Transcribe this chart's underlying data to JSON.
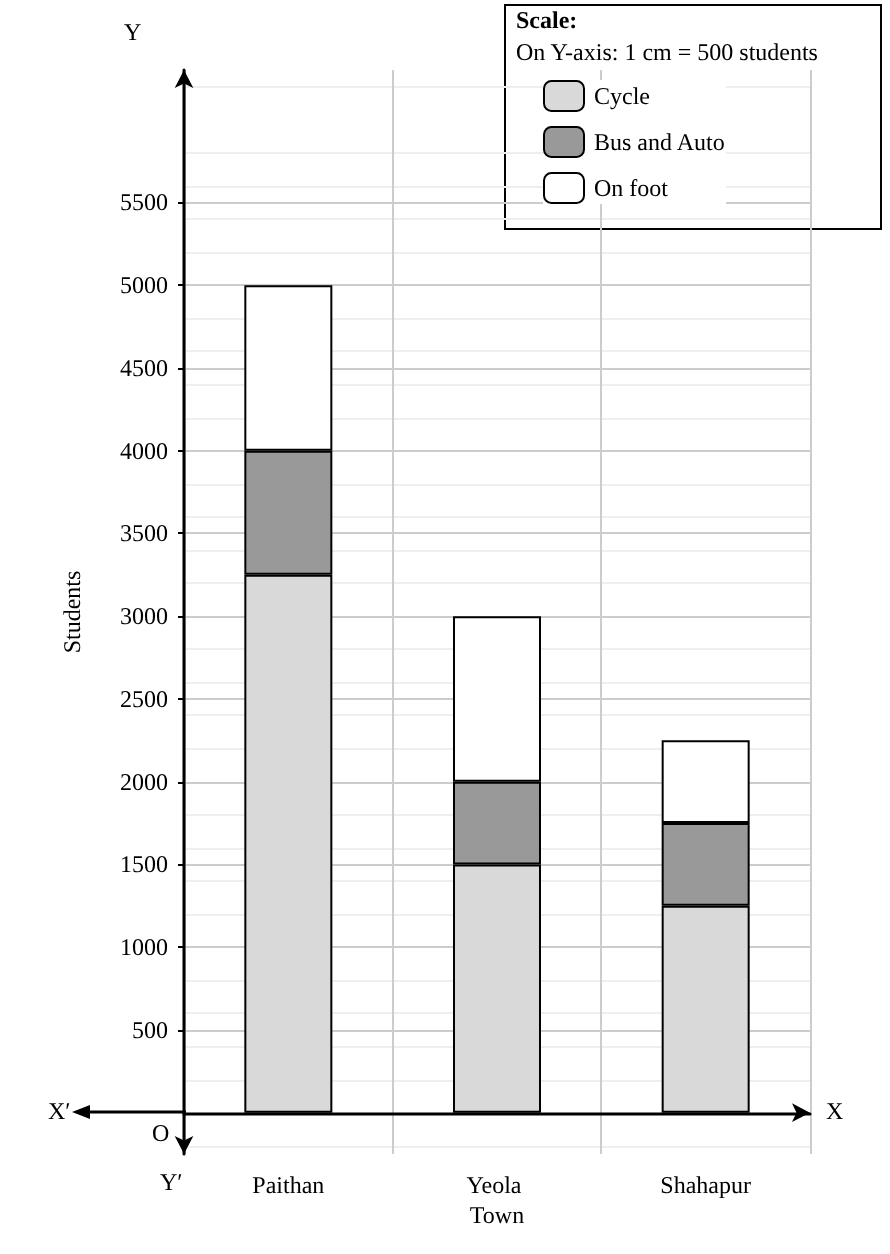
{
  "chart_data": {
    "type": "bar",
    "stacked": true,
    "ylabel": "Students",
    "categories": [
      "Paithan",
      "Yeola Town",
      "Shahapur"
    ],
    "series": [
      {
        "name": "Cycle",
        "color": "#d9d9d9",
        "values": [
          3250,
          1500,
          1250
        ]
      },
      {
        "name": "Bus and Auto",
        "color": "#999999",
        "values": [
          750,
          500,
          500
        ]
      },
      {
        "name": "On foot",
        "color": "#ffffff",
        "values": [
          1000,
          1000,
          500
        ]
      }
    ],
    "ylim": [
      -250,
      6300
    ],
    "yticks": [
      500,
      1000,
      1500,
      2000,
      2500,
      3000,
      3500,
      4000,
      4500,
      5000,
      5500
    ],
    "grid": true,
    "legend": "top right",
    "annotations": [
      "Scale:",
      "On Y-axis: 1 cm = 500 students",
      "X′",
      "X",
      "Y",
      "Y′",
      "O"
    ]
  }
}
